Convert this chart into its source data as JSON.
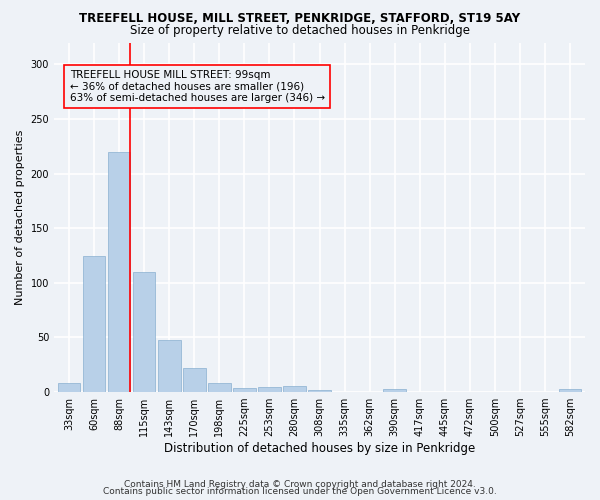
{
  "title": "TREEFELL HOUSE, MILL STREET, PENKRIDGE, STAFFORD, ST19 5AY",
  "subtitle": "Size of property relative to detached houses in Penkridge",
  "xlabel": "Distribution of detached houses by size in Penkridge",
  "ylabel": "Number of detached properties",
  "bar_color": "#b8d0e8",
  "bar_edge_color": "#8ab0d0",
  "categories": [
    "33sqm",
    "60sqm",
    "88sqm",
    "115sqm",
    "143sqm",
    "170sqm",
    "198sqm",
    "225sqm",
    "253sqm",
    "280sqm",
    "308sqm",
    "335sqm",
    "362sqm",
    "390sqm",
    "417sqm",
    "445sqm",
    "472sqm",
    "500sqm",
    "527sqm",
    "555sqm",
    "582sqm"
  ],
  "values": [
    8,
    125,
    220,
    110,
    48,
    22,
    8,
    4,
    5,
    6,
    2,
    0,
    0,
    3,
    0,
    0,
    0,
    0,
    0,
    0,
    3
  ],
  "ylim": [
    0,
    320
  ],
  "yticks": [
    0,
    50,
    100,
    150,
    200,
    250,
    300
  ],
  "property_line_x": 2.425,
  "annotation_text": "TREEFELL HOUSE MILL STREET: 99sqm\n← 36% of detached houses are smaller (196)\n63% of semi-detached houses are larger (346) →",
  "footnote1": "Contains HM Land Registry data © Crown copyright and database right 2024.",
  "footnote2": "Contains public sector information licensed under the Open Government Licence v3.0.",
  "background_color": "#eef2f7",
  "grid_color": "#ffffff",
  "title_fontsize": 8.5,
  "subtitle_fontsize": 8.5,
  "annotation_fontsize": 7.5,
  "ylabel_fontsize": 8,
  "xlabel_fontsize": 8.5,
  "tick_fontsize": 7,
  "footnote_fontsize": 6.5
}
